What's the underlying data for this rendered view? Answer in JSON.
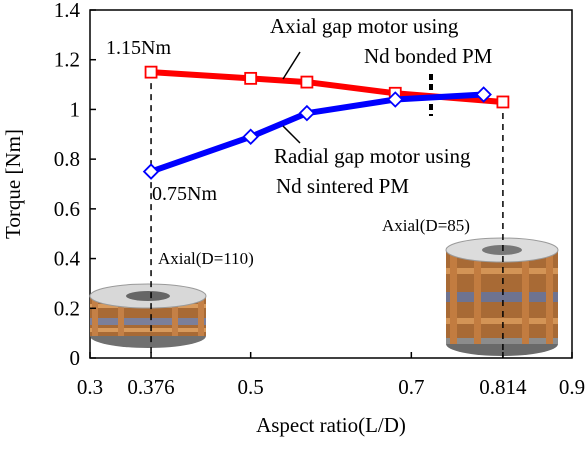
{
  "chart_data": {
    "type": "line",
    "xlabel": "Aspect ratio(L/D)",
    "ylabel": "Torque [Nm]",
    "xlim": [
      0.3,
      0.9
    ],
    "ylim": [
      0,
      1.4
    ],
    "x_ticks": [
      "0.3",
      "0.376",
      "0.5",
      "0.7",
      "0.814",
      "0.9"
    ],
    "y_ticks": [
      "0",
      "0.2",
      "0.4",
      "0.6",
      "0.8",
      "1",
      "1.2",
      "1.4"
    ],
    "grid": false,
    "series": [
      {
        "name": "Axial gap motor using Nd bonded PM",
        "label_line1": "Axial gap motor using",
        "label_line2": "Nd bonded PM",
        "color": "#ff0000",
        "marker": "square",
        "x": [
          0.376,
          0.5,
          0.57,
          0.68,
          0.814
        ],
        "y": [
          1.15,
          1.125,
          1.11,
          1.065,
          1.03
        ]
      },
      {
        "name": "Radial gap motor using Nd sintered PM",
        "label_line1": "Radial gap motor using",
        "label_line2": "Nd sintered PM",
        "color": "#0000ff",
        "marker": "diamond",
        "x": [
          0.376,
          0.5,
          0.57,
          0.68,
          0.79
        ],
        "y": [
          0.75,
          0.89,
          0.985,
          1.04,
          1.06
        ]
      }
    ],
    "annotations": {
      "top_left_value": "1.15Nm",
      "bottom_left_value": "0.75Nm",
      "axial_left": "Axial(D=110)",
      "axial_right": "Axial(D=85)"
    }
  }
}
